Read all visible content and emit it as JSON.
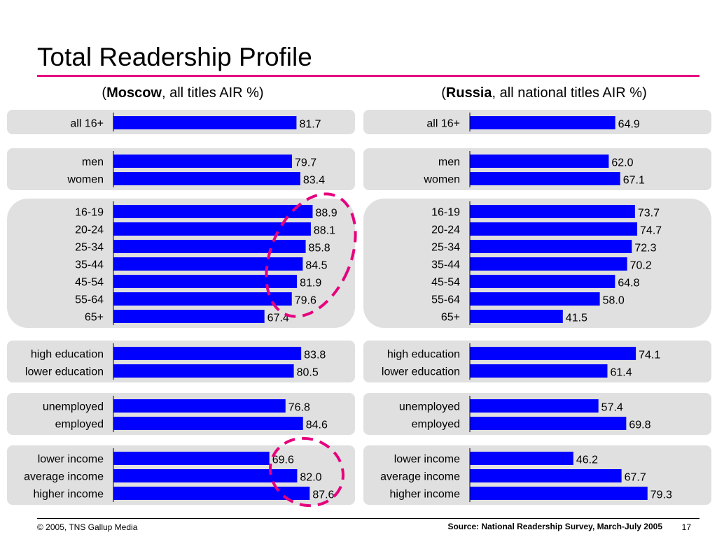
{
  "slide": {
    "title": "Total Readership Profile",
    "accent_color": "#e6007e",
    "copyright": "© 2005, TNS Gallup Media",
    "source": "Source: National Readership Survey, March-July 2005",
    "page_number": "17"
  },
  "chart_data": [
    {
      "type": "bar",
      "orientation": "horizontal",
      "subtitle_bold": "Moscow",
      "subtitle_rest": ", all titles AIR %)",
      "bar_color": "#0000ff",
      "panel_color": "#e0e0e0",
      "xlim": [
        0,
        100
      ],
      "groups": [
        {
          "categories": [
            "all 16+"
          ],
          "values": [
            81.7
          ]
        },
        {
          "categories": [
            "men",
            "women"
          ],
          "values": [
            79.7,
            83.4
          ]
        },
        {
          "categories": [
            "16-19",
            "20-24",
            "25-34",
            "35-44",
            "45-54",
            "55-64",
            "65+"
          ],
          "values": [
            88.9,
            88.1,
            85.8,
            84.5,
            81.9,
            79.6,
            67.4
          ]
        },
        {
          "categories": [
            "high education",
            "lower education"
          ],
          "values": [
            83.8,
            80.5
          ]
        },
        {
          "categories": [
            "unemployed",
            "employed"
          ],
          "values": [
            76.8,
            84.6
          ]
        },
        {
          "categories": [
            "lower income",
            "average income",
            "higher income"
          ],
          "values": [
            69.6,
            82.0,
            87.6
          ]
        }
      ],
      "annotations": [
        "dashed ellipse around age bars",
        "dashed ellipse around income bars"
      ]
    },
    {
      "type": "bar",
      "orientation": "horizontal",
      "subtitle_bold": "Russia",
      "subtitle_rest": ", all national titles AIR %)",
      "bar_color": "#0000ff",
      "panel_color": "#e0e0e0",
      "xlim": [
        0,
        100
      ],
      "groups": [
        {
          "categories": [
            "all 16+"
          ],
          "values": [
            64.9
          ]
        },
        {
          "categories": [
            "men",
            "women"
          ],
          "values": [
            62.0,
            67.1
          ]
        },
        {
          "categories": [
            "16-19",
            "20-24",
            "25-34",
            "35-44",
            "45-54",
            "55-64",
            "65+"
          ],
          "values": [
            73.7,
            74.7,
            72.3,
            70.2,
            64.8,
            58.0,
            41.5
          ]
        },
        {
          "categories": [
            "high education",
            "lower education"
          ],
          "values": [
            74.1,
            61.4
          ]
        },
        {
          "categories": [
            "unemployed",
            "employed"
          ],
          "values": [
            57.4,
            69.8
          ]
        },
        {
          "categories": [
            "lower income",
            "average income",
            "higher income"
          ],
          "values": [
            46.2,
            67.7,
            79.3
          ]
        }
      ]
    }
  ]
}
